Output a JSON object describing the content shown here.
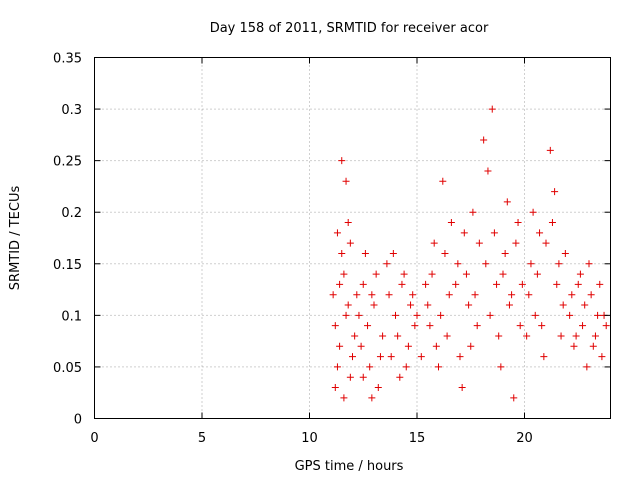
{
  "chart_data": {
    "type": "scatter",
    "title": "Day 158 of 2011, SRMTID for receiver acor",
    "xlabel": "GPS time / hours",
    "ylabel": "SRMTID / TECUs",
    "xlim": [
      0,
      24
    ],
    "ylim": [
      0,
      0.35
    ],
    "xticks": [
      0,
      5,
      10,
      15,
      20
    ],
    "xtick_labels": [
      "0",
      "5",
      "10",
      "15",
      "20"
    ],
    "yticks": [
      0,
      0.05,
      0.1,
      0.15,
      0.2,
      0.25,
      0.3,
      0.35
    ],
    "ytick_labels": [
      "0",
      "0.05",
      "0.1",
      "0.15",
      "0.2",
      "0.25",
      "0.3",
      "0.35"
    ],
    "grid": true,
    "marker": "+",
    "color": "#e00000",
    "series": [
      {
        "name": "SRMTID",
        "points": [
          [
            11.1,
            0.12
          ],
          [
            11.2,
            0.09
          ],
          [
            11.3,
            0.18
          ],
          [
            11.4,
            0.07
          ],
          [
            11.5,
            0.25
          ],
          [
            11.6,
            0.14
          ],
          [
            11.7,
            0.23
          ],
          [
            11.8,
            0.11
          ],
          [
            11.9,
            0.17
          ],
          [
            12.0,
            0.06
          ],
          [
            11.2,
            0.03
          ],
          [
            11.4,
            0.13
          ],
          [
            11.6,
            0.02
          ],
          [
            11.8,
            0.19
          ],
          [
            12.1,
            0.08
          ],
          [
            11.3,
            0.05
          ],
          [
            11.5,
            0.16
          ],
          [
            11.7,
            0.1
          ],
          [
            11.9,
            0.04
          ],
          [
            12.2,
            0.12
          ],
          [
            12.4,
            0.07
          ],
          [
            12.6,
            0.16
          ],
          [
            12.8,
            0.05
          ],
          [
            13.0,
            0.11
          ],
          [
            13.2,
            0.03
          ],
          [
            12.5,
            0.13
          ],
          [
            12.7,
            0.09
          ],
          [
            12.9,
            0.02
          ],
          [
            13.1,
            0.14
          ],
          [
            13.3,
            0.06
          ],
          [
            12.3,
            0.1
          ],
          [
            12.5,
            0.04
          ],
          [
            12.9,
            0.12
          ],
          [
            13.4,
            0.08
          ],
          [
            13.6,
            0.15
          ],
          [
            13.8,
            0.06
          ],
          [
            14.0,
            0.1
          ],
          [
            14.2,
            0.04
          ],
          [
            13.7,
            0.12
          ],
          [
            13.9,
            0.16
          ],
          [
            14.1,
            0.08
          ],
          [
            14.3,
            0.13
          ],
          [
            14.5,
            0.05
          ],
          [
            14.7,
            0.11
          ],
          [
            14.9,
            0.09
          ],
          [
            14.4,
            0.14
          ],
          [
            14.6,
            0.07
          ],
          [
            14.8,
            0.12
          ],
          [
            15.0,
            0.1
          ],
          [
            15.2,
            0.06
          ],
          [
            15.4,
            0.13
          ],
          [
            15.6,
            0.09
          ],
          [
            15.8,
            0.17
          ],
          [
            16.0,
            0.05
          ],
          [
            15.5,
            0.11
          ],
          [
            15.7,
            0.14
          ],
          [
            15.9,
            0.07
          ],
          [
            16.1,
            0.1
          ],
          [
            16.3,
            0.16
          ],
          [
            16.5,
            0.12
          ],
          [
            16.2,
            0.23
          ],
          [
            16.4,
            0.08
          ],
          [
            16.6,
            0.19
          ],
          [
            16.8,
            0.13
          ],
          [
            17.0,
            0.06
          ],
          [
            17.2,
            0.18
          ],
          [
            17.4,
            0.11
          ],
          [
            17.6,
            0.2
          ],
          [
            17.8,
            0.09
          ],
          [
            16.9,
            0.15
          ],
          [
            17.1,
            0.03
          ],
          [
            17.3,
            0.14
          ],
          [
            17.5,
            0.07
          ],
          [
            17.7,
            0.12
          ],
          [
            17.9,
            0.17
          ],
          [
            18.1,
            0.27
          ],
          [
            18.3,
            0.24
          ],
          [
            18.5,
            0.3
          ],
          [
            18.2,
            0.15
          ],
          [
            18.4,
            0.1
          ],
          [
            18.6,
            0.18
          ],
          [
            18.8,
            0.08
          ],
          [
            19.0,
            0.14
          ],
          [
            19.2,
            0.21
          ],
          [
            19.4,
            0.12
          ],
          [
            19.6,
            0.17
          ],
          [
            19.8,
            0.09
          ],
          [
            18.7,
            0.13
          ],
          [
            18.9,
            0.05
          ],
          [
            19.1,
            0.16
          ],
          [
            19.3,
            0.11
          ],
          [
            19.5,
            0.02
          ],
          [
            19.7,
            0.19
          ],
          [
            19.9,
            0.13
          ],
          [
            20.1,
            0.08
          ],
          [
            20.3,
            0.15
          ],
          [
            20.5,
            0.1
          ],
          [
            20.7,
            0.18
          ],
          [
            20.9,
            0.06
          ],
          [
            20.2,
            0.12
          ],
          [
            20.4,
            0.2
          ],
          [
            20.6,
            0.14
          ],
          [
            20.8,
            0.09
          ],
          [
            21.0,
            0.17
          ],
          [
            21.2,
            0.26
          ],
          [
            21.4,
            0.22
          ],
          [
            21.6,
            0.15
          ],
          [
            21.8,
            0.11
          ],
          [
            21.3,
            0.19
          ],
          [
            21.5,
            0.13
          ],
          [
            21.7,
            0.08
          ],
          [
            21.9,
            0.16
          ],
          [
            22.1,
            0.1
          ],
          [
            22.3,
            0.07
          ],
          [
            22.5,
            0.13
          ],
          [
            22.7,
            0.09
          ],
          [
            22.9,
            0.05
          ],
          [
            22.2,
            0.12
          ],
          [
            22.4,
            0.08
          ],
          [
            22.6,
            0.14
          ],
          [
            22.8,
            0.11
          ],
          [
            23.0,
            0.15
          ],
          [
            23.2,
            0.07
          ],
          [
            23.4,
            0.1
          ],
          [
            23.6,
            0.06
          ],
          [
            23.8,
            0.09
          ],
          [
            23.1,
            0.12
          ],
          [
            23.3,
            0.08
          ],
          [
            23.5,
            0.13
          ],
          [
            23.7,
            0.1
          ]
        ]
      }
    ]
  }
}
